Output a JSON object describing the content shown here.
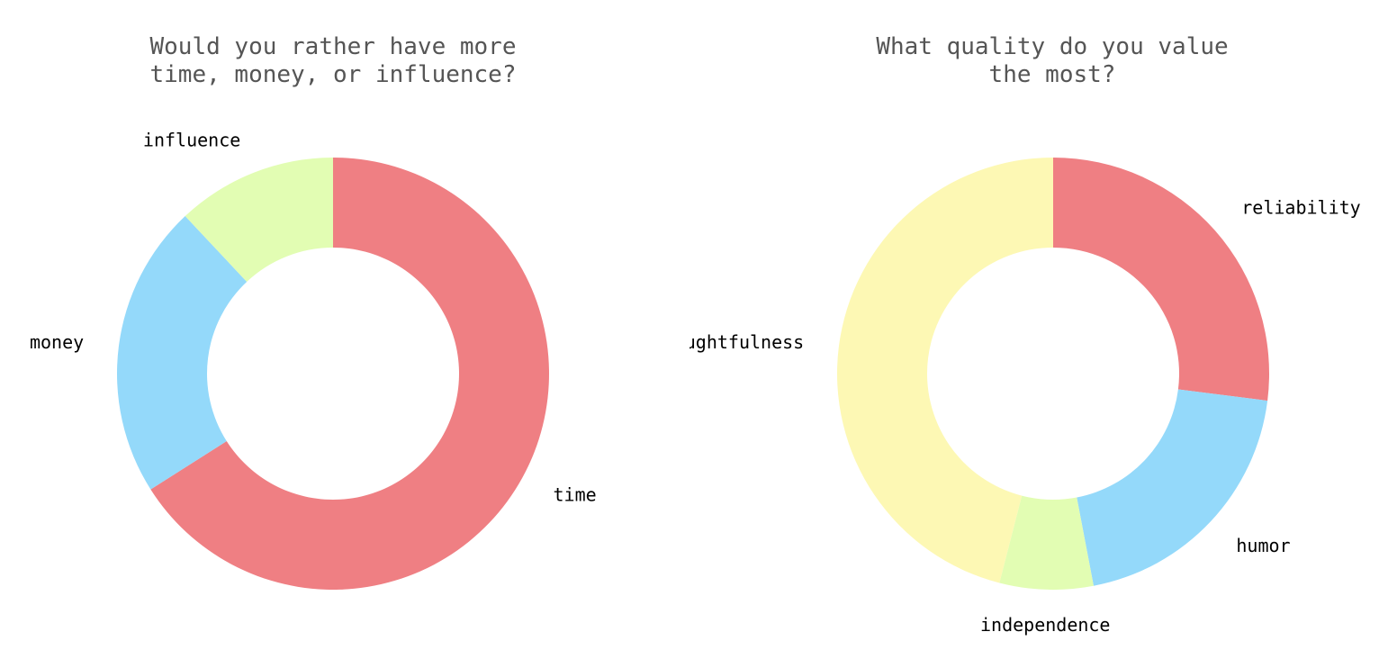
{
  "chart_data": [
    {
      "type": "pie",
      "donut": true,
      "title_lines": [
        "Would you rather have more",
        "time, money, or influence?"
      ],
      "categories": [
        "time",
        "money",
        "influence"
      ],
      "values": [
        66,
        22,
        12
      ],
      "colors": [
        "#ef7f83",
        "#94d9fa",
        "#e2fdb3"
      ],
      "start": "12 o'clock",
      "direction": "clockwise",
      "legend": "none"
    },
    {
      "type": "pie",
      "donut": true,
      "title_lines": [
        "What quality do you value",
        "the most?"
      ],
      "categories": [
        "reliability",
        "humor",
        "independence",
        "thoughtfulness"
      ],
      "values": [
        27,
        20,
        7,
        46
      ],
      "colors": [
        "#ef7f83",
        "#94d9fa",
        "#e2fdb3",
        "#fdf8b4"
      ],
      "start": "12 o'clock",
      "direction": "clockwise",
      "legend": "none"
    }
  ]
}
